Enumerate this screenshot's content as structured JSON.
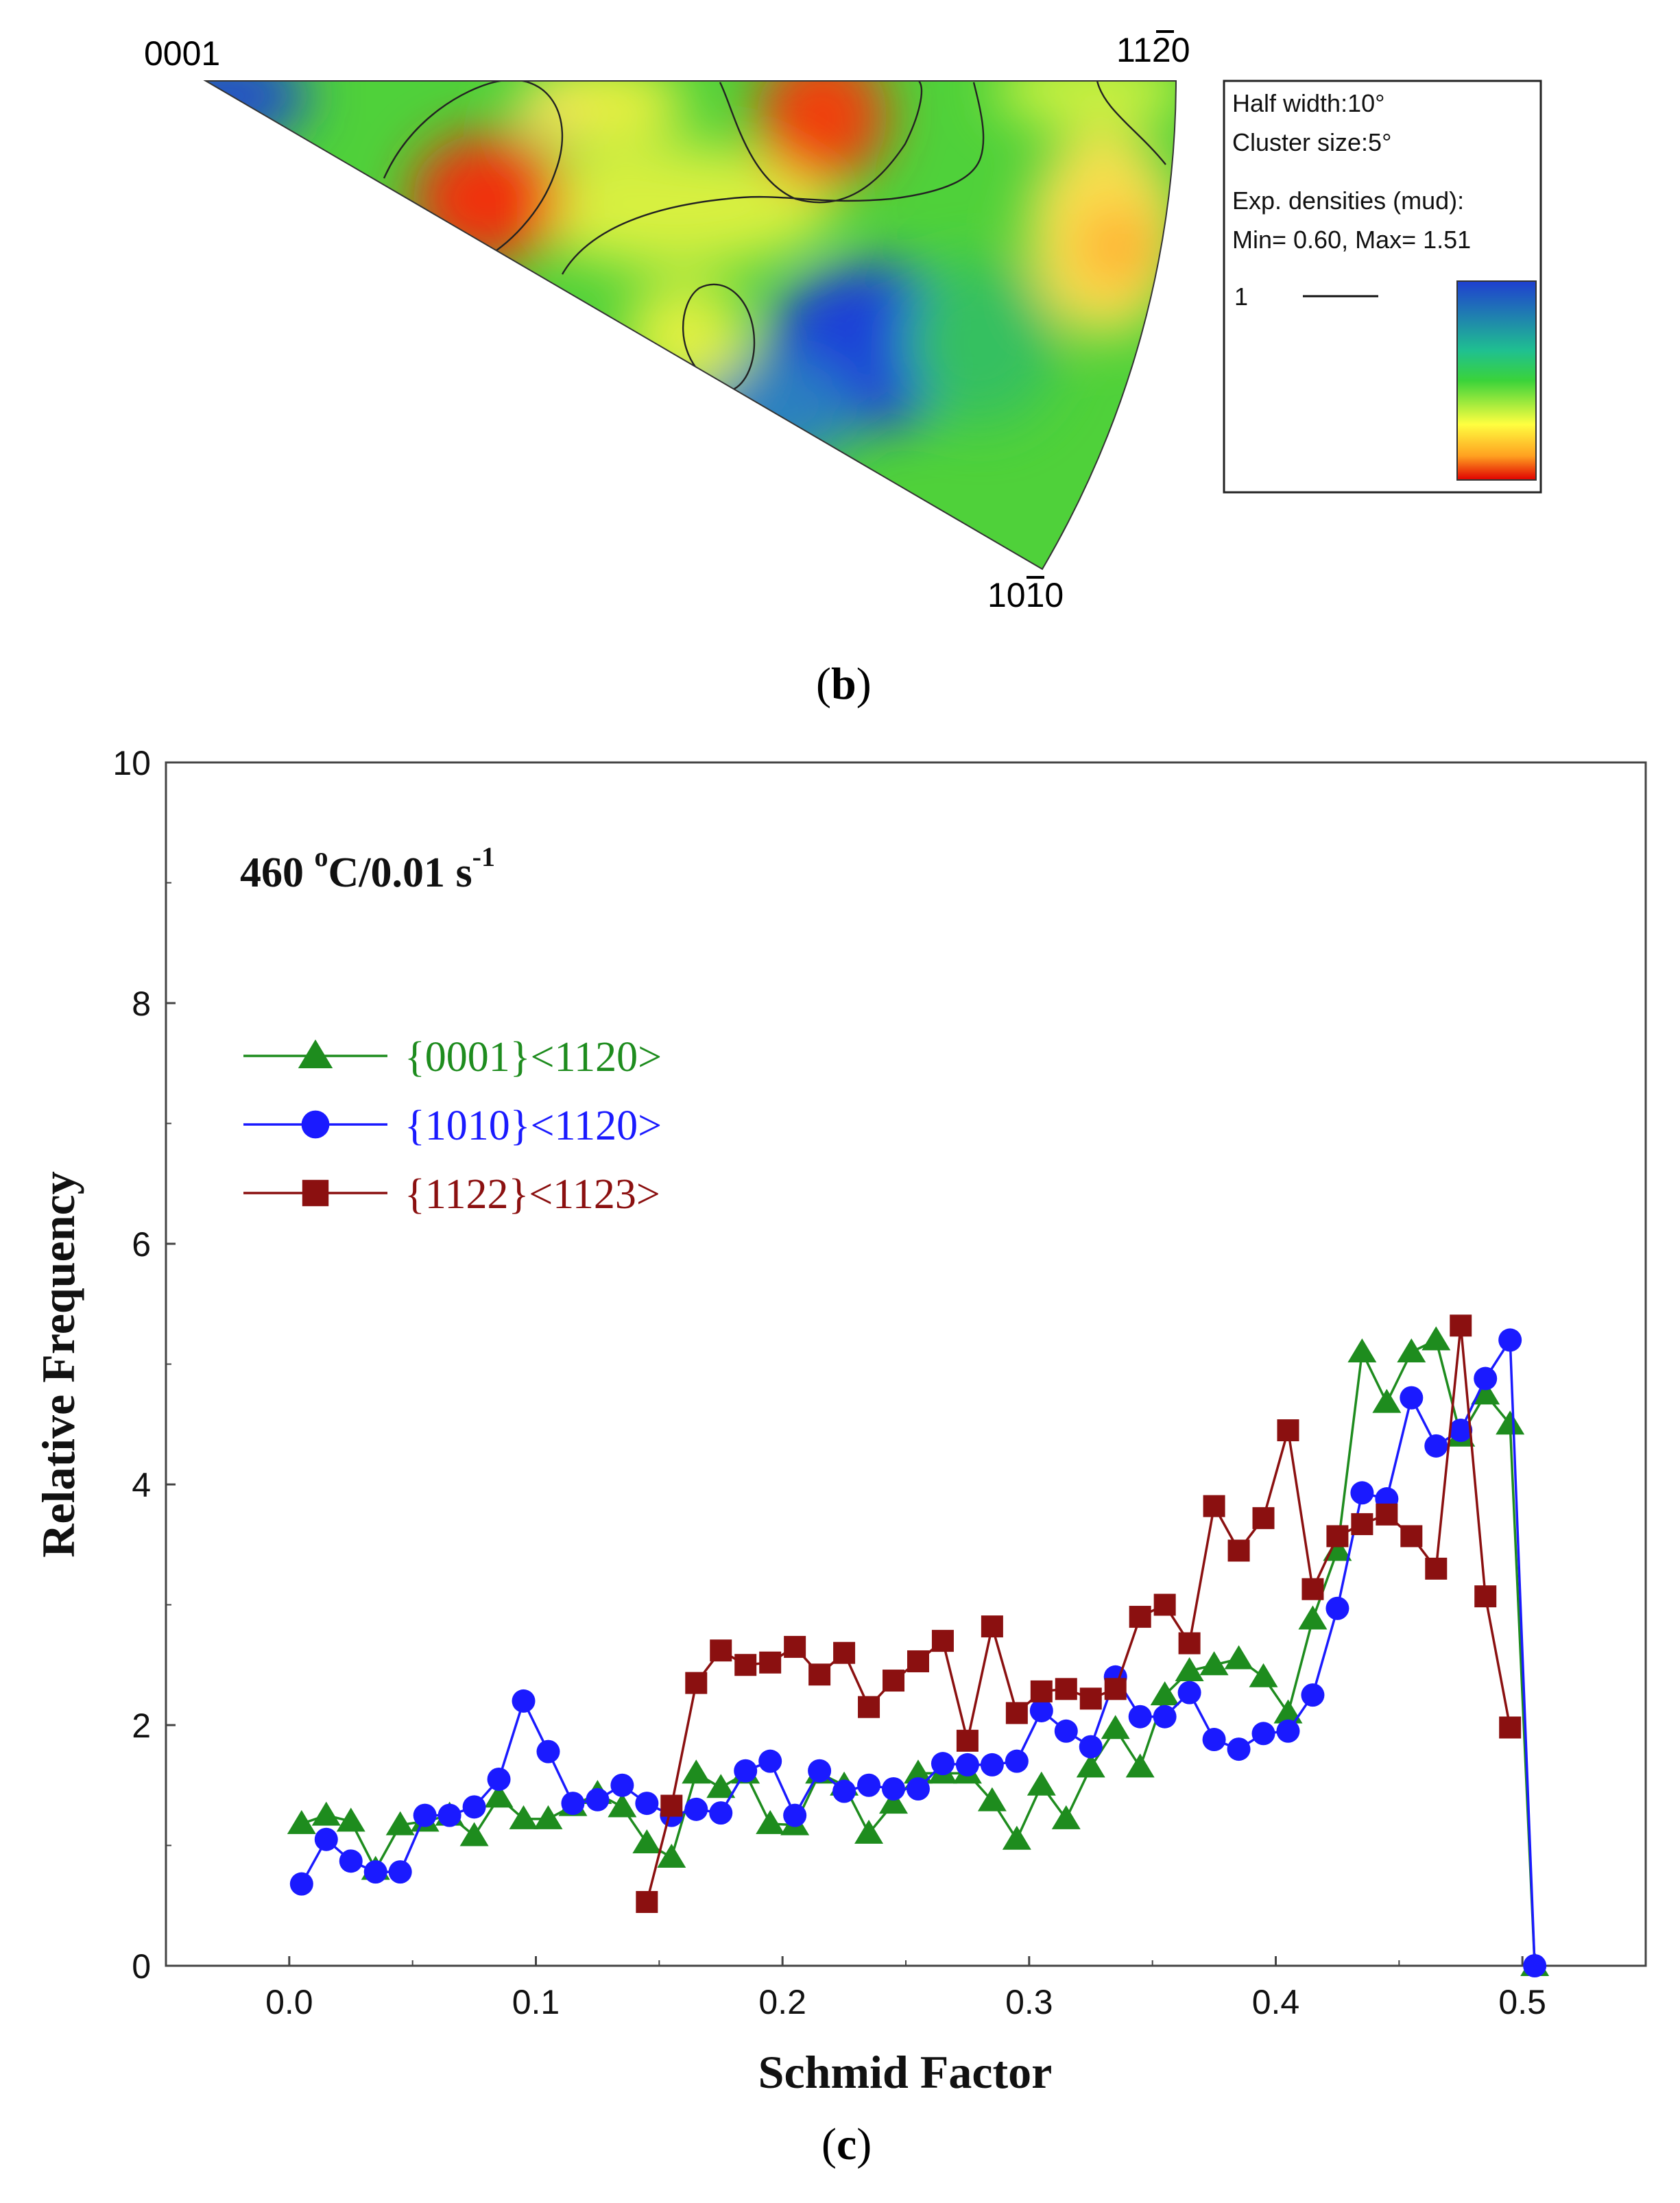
{
  "panel_b": {
    "caption_letter": "b",
    "corner_labels": {
      "top_left": "0001",
      "top_right": "1120",
      "bottom": "1010"
    },
    "legend": {
      "half_width": "Half width:10°",
      "cluster_size": "Cluster size:5°",
      "densities_title": "Exp. densities (mud):",
      "min_max": "Min= 0.60, Max= 1.51",
      "contour_level": "1"
    },
    "colors": {
      "high": "#1f3fd0",
      "mid": "#3ad33a",
      "low_mid": "#ffff40",
      "low": "#e00000"
    }
  },
  "panel_c": {
    "caption_letter": "c",
    "annotation": "460 °C/0.01 s-1"
  },
  "chart_data": {
    "type": "line",
    "title": "460 °C/0.01 s-1",
    "xlabel": "Schmid Factor",
    "ylabel": "Relative Frequency",
    "xlim": [
      -0.05,
      0.55
    ],
    "ylim": [
      0,
      10
    ],
    "xticks": [
      "0.0",
      "0.1",
      "0.2",
      "0.3",
      "0.4",
      "0.5"
    ],
    "yticks": [
      "0",
      "2",
      "4",
      "6",
      "8",
      "10"
    ],
    "series": [
      {
        "name": "{0001}<1120>",
        "color": "#1e8c1e",
        "marker": "triangle",
        "x": [
          0.005,
          0.015,
          0.025,
          0.035,
          0.045,
          0.055,
          0.065,
          0.075,
          0.085,
          0.095,
          0.105,
          0.115,
          0.125,
          0.135,
          0.145,
          0.155,
          0.165,
          0.175,
          0.185,
          0.195,
          0.205,
          0.215,
          0.225,
          0.235,
          0.245,
          0.255,
          0.265,
          0.275,
          0.285,
          0.295,
          0.305,
          0.315,
          0.325,
          0.335,
          0.345,
          0.355,
          0.365,
          0.375,
          0.385,
          0.395,
          0.405,
          0.415,
          0.425,
          0.435,
          0.445,
          0.455,
          0.465,
          0.475,
          0.485,
          0.495,
          0.505
        ],
        "y": [
          1.18,
          1.25,
          1.2,
          0.8,
          1.17,
          1.2,
          1.25,
          1.08,
          1.4,
          1.22,
          1.22,
          1.33,
          1.43,
          1.32,
          1.02,
          0.9,
          1.6,
          1.48,
          1.6,
          1.18,
          1.17,
          1.6,
          1.5,
          1.1,
          1.35,
          1.6,
          1.6,
          1.6,
          1.37,
          1.05,
          1.5,
          1.22,
          1.65,
          1.97,
          1.65,
          2.25,
          2.45,
          2.5,
          2.55,
          2.4,
          2.1,
          2.88,
          3.45,
          5.1,
          4.68,
          5.1,
          5.2,
          4.4,
          4.75,
          4.5,
          0.0
        ]
      },
      {
        "name": "{1010}<1120>",
        "color": "#1a1aff",
        "marker": "circle",
        "x": [
          0.005,
          0.015,
          0.025,
          0.035,
          0.045,
          0.055,
          0.065,
          0.075,
          0.085,
          0.095,
          0.105,
          0.115,
          0.125,
          0.135,
          0.145,
          0.155,
          0.165,
          0.175,
          0.185,
          0.195,
          0.205,
          0.215,
          0.225,
          0.235,
          0.245,
          0.255,
          0.265,
          0.275,
          0.285,
          0.295,
          0.305,
          0.315,
          0.325,
          0.335,
          0.345,
          0.355,
          0.365,
          0.375,
          0.385,
          0.395,
          0.405,
          0.415,
          0.425,
          0.435,
          0.445,
          0.455,
          0.465,
          0.475,
          0.485,
          0.495,
          0.505
        ],
        "y": [
          0.68,
          1.05,
          0.87,
          0.78,
          0.78,
          1.25,
          1.25,
          1.32,
          1.55,
          2.2,
          1.78,
          1.35,
          1.38,
          1.5,
          1.35,
          1.25,
          1.3,
          1.27,
          1.62,
          1.7,
          1.25,
          1.62,
          1.45,
          1.5,
          1.47,
          1.47,
          1.68,
          1.67,
          1.67,
          1.7,
          2.12,
          1.95,
          1.82,
          2.4,
          2.07,
          2.07,
          2.27,
          1.88,
          1.8,
          1.93,
          1.95,
          2.25,
          2.97,
          3.93,
          3.88,
          4.72,
          4.32,
          4.45,
          4.88,
          5.2,
          0.0
        ]
      },
      {
        "name": "{1122}<1123>",
        "color": "#8b1010",
        "marker": "square",
        "x": [
          0.145,
          0.155,
          0.165,
          0.175,
          0.185,
          0.195,
          0.205,
          0.215,
          0.225,
          0.235,
          0.245,
          0.255,
          0.265,
          0.275,
          0.285,
          0.295,
          0.305,
          0.315,
          0.325,
          0.335,
          0.345,
          0.355,
          0.365,
          0.375,
          0.385,
          0.395,
          0.405,
          0.415,
          0.425,
          0.435,
          0.445,
          0.455,
          0.465,
          0.475,
          0.485,
          0.495
        ],
        "y": [
          0.53,
          1.33,
          2.35,
          2.62,
          2.5,
          2.52,
          2.65,
          2.42,
          2.6,
          2.15,
          2.37,
          2.53,
          2.7,
          1.87,
          2.82,
          2.1,
          2.28,
          2.3,
          2.22,
          2.3,
          2.9,
          3.0,
          2.68,
          3.82,
          3.45,
          3.72,
          4.45,
          3.13,
          3.57,
          3.67,
          3.75,
          3.57,
          3.3,
          5.32,
          3.07,
          1.98
        ]
      }
    ]
  }
}
